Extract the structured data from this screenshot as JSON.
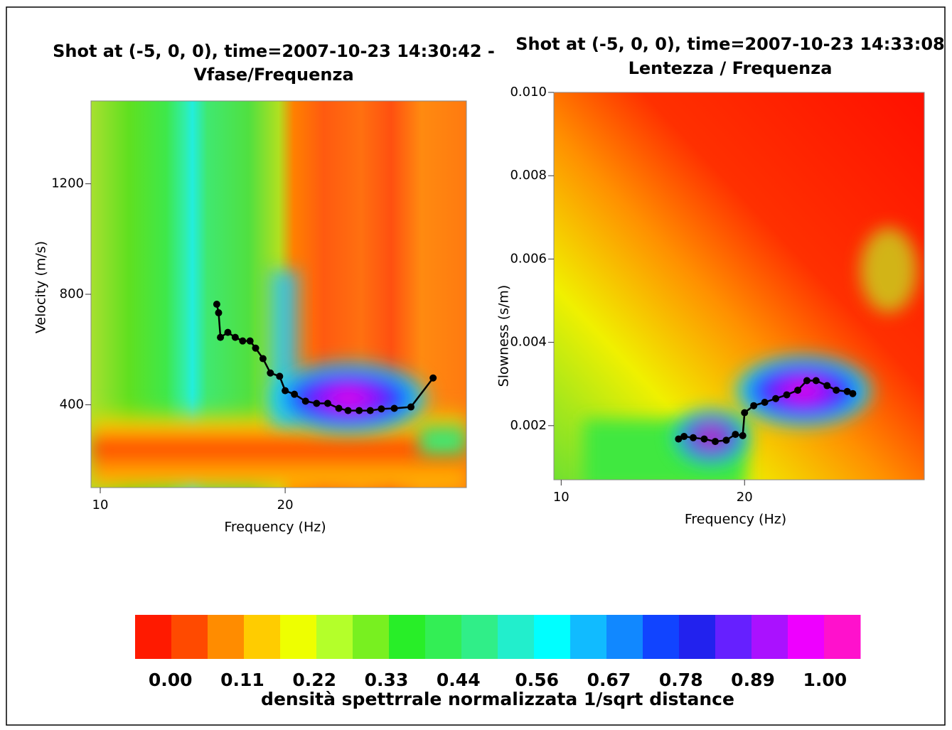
{
  "chart_data": [
    {
      "type": "line",
      "title": "Shot at (-5, 0, 0), time=2007-10-23 14:30:42 -",
      "subtitle": "Vfase/Frequenza",
      "x_label": "Frequency (Hz)",
      "y_label": "Velocity (m/s)",
      "xlim": [
        9.5,
        29.8
      ],
      "ylim": [
        100,
        1500
      ],
      "xticks": [
        10,
        20
      ],
      "yticks": [
        400,
        800,
        1200
      ],
      "color": "#000000",
      "x": [
        16.3,
        16.4,
        16.5,
        16.9,
        17.3,
        17.7,
        18.1,
        18.4,
        18.8,
        19.2,
        19.7,
        20.0,
        20.5,
        21.1,
        21.7,
        22.3,
        22.9,
        23.4,
        24.0,
        24.6,
        25.2,
        25.9,
        26.8,
        28.0
      ],
      "values": [
        764,
        733,
        644,
        662,
        644,
        631,
        631,
        605,
        567,
        515,
        503,
        451,
        438,
        413,
        405,
        405,
        387,
        379,
        379,
        379,
        385,
        387,
        392,
        497
      ]
    },
    {
      "type": "line",
      "title": "Shot at (-5, 0, 0), time=2007-10-23 14:33:08",
      "subtitle": "Lentezza / Frequenza",
      "x_label": "Frequency (Hz)",
      "y_label": "Slowness (s/m)",
      "xlim": [
        9.6,
        29.8
      ],
      "ylim": [
        0.0007,
        0.01
      ],
      "xticks": [
        10,
        20
      ],
      "yticks": [
        0.002,
        0.004,
        0.006,
        0.008,
        {
          "value": 0.01,
          "label": "0.010"
        }
      ],
      "color": "#000000",
      "x": [
        16.4,
        16.7,
        17.2,
        17.8,
        18.4,
        19.0,
        19.5,
        19.9,
        20.0,
        20.5,
        21.1,
        21.7,
        22.3,
        22.9,
        23.4,
        23.9,
        24.5,
        25.0,
        25.6,
        25.9
      ],
      "values": [
        0.00168,
        0.00174,
        0.00171,
        0.00168,
        0.00162,
        0.00165,
        0.00179,
        0.00176,
        0.00231,
        0.00248,
        0.00256,
        0.00265,
        0.00274,
        0.00285,
        0.00308,
        0.00308,
        0.00296,
        0.00285,
        0.00282,
        0.00277
      ]
    }
  ],
  "colorbar": {
    "label": "densità spettrrale normalizzata 1/sqrt distance",
    "lim": [
      -0.054,
      1.054
    ],
    "ticks": [
      {
        "value": 0,
        "label": "0.00"
      },
      {
        "value": 0.11,
        "label": "0.11"
      },
      {
        "value": 0.22,
        "label": "0.22"
      },
      {
        "value": 0.33,
        "label": "0.33"
      },
      {
        "value": 0.44,
        "label": "0.44"
      },
      {
        "value": 0.56,
        "label": "0.56"
      },
      {
        "value": 0.67,
        "label": "0.67"
      },
      {
        "value": 0.78,
        "label": "0.78"
      },
      {
        "value": 0.89,
        "label": "0.89"
      },
      {
        "value": 1,
        "label": "1.00"
      }
    ],
    "colors": [
      "#ff1a00",
      "#ff4a00",
      "#ff8c00",
      "#ffcc00",
      "#eeff00",
      "#b4ff2a",
      "#78f020",
      "#28ee28",
      "#33ee55",
      "#30ee88",
      "#22eecc",
      "#00ffff",
      "#11bbff",
      "#1188ff",
      "#1144ff",
      "#2222ee",
      "#6620ff",
      "#aa11ff",
      "#ee00ff",
      "#ff11cc"
    ]
  }
}
